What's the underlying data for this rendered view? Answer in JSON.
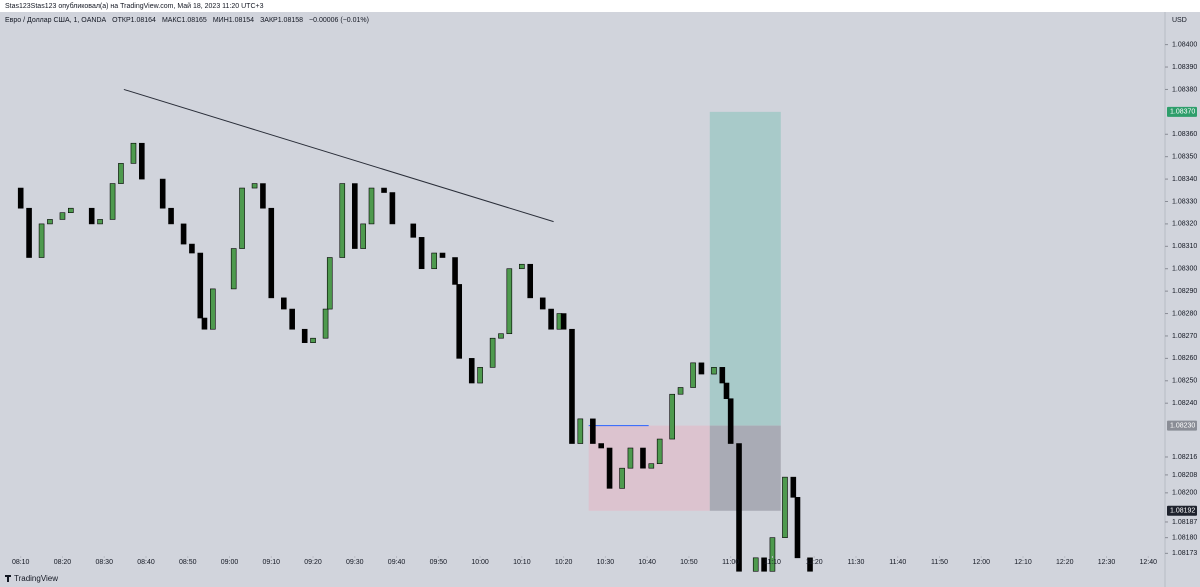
{
  "header": {
    "byline": "Stas123Stas123 опубликовал(а) на TradingView.com, Май 18, 2023 11:20 UTC+3"
  },
  "footer": {
    "brand": "TradingView"
  },
  "chart_data": {
    "type": "candlestick",
    "title": "Евро / Доллар США, 1, OANDA",
    "legend": [
      {
        "label": "ОТКР",
        "value": 1.08164
      },
      {
        "label": "МАКС",
        "value": 1.08165
      },
      {
        "label": "МИН",
        "value": 1.08154
      },
      {
        "label": "ЗАКР",
        "value": 1.08158
      }
    ],
    "change": "−0.00006 (−0.01%)",
    "currency": "USD",
    "up_color": "#4e9a4e",
    "down_color": "#000000",
    "x": [
      490,
      492,
      495,
      497,
      500,
      502,
      507,
      509,
      512,
      514,
      517,
      519,
      524,
      526,
      529,
      531,
      533,
      534,
      536,
      541,
      543,
      546,
      548,
      550,
      553,
      555,
      558,
      560,
      563,
      564,
      567,
      570,
      572,
      574,
      577,
      579,
      584,
      586,
      589,
      591,
      594,
      595,
      598,
      600,
      603,
      605,
      607,
      610,
      612,
      615,
      617,
      619,
      620,
      622,
      624,
      627,
      629,
      631,
      634,
      636,
      639,
      641,
      643,
      646,
      648,
      651,
      653,
      656,
      658,
      659,
      660,
      662,
      666,
      668,
      670,
      673,
      675,
      676,
      679
    ],
    "open": [
      1.08336,
      1.08327,
      1.08305,
      1.0832,
      1.08322,
      1.08325,
      1.08327,
      1.0832,
      1.08322,
      1.08338,
      1.08347,
      1.08356,
      1.0834,
      1.08327,
      1.0832,
      1.08311,
      1.08307,
      1.08278,
      1.08273,
      1.08291,
      1.08309,
      1.08336,
      1.08338,
      1.08327,
      1.08287,
      1.08282,
      1.08273,
      1.08267,
      1.08269,
      1.08282,
      1.08305,
      1.08338,
      1.08309,
      1.0832,
      1.08336,
      1.08334,
      1.0832,
      1.08314,
      1.083,
      1.08307,
      1.08305,
      1.08293,
      1.0826,
      1.08249,
      1.08256,
      1.08269,
      1.08271,
      1.083,
      1.08302,
      1.08287,
      1.08282,
      1.08273,
      1.0828,
      1.08273,
      1.08222,
      1.08233,
      1.08222,
      1.0822,
      1.08202,
      1.08211,
      1.0822,
      1.08211,
      1.08213,
      1.08224,
      1.08244,
      1.08247,
      1.08258,
      1.08253,
      1.08256,
      1.08249,
      1.08242,
      1.08222,
      1.08165,
      1.08171,
      1.08165,
      1.0818,
      1.08207,
      1.08198,
      1.08171
    ],
    "close": [
      1.08327,
      1.08305,
      1.0832,
      1.08322,
      1.08325,
      1.08327,
      1.0832,
      1.08322,
      1.08338,
      1.08347,
      1.08356,
      1.0834,
      1.08327,
      1.0832,
      1.08311,
      1.08307,
      1.08278,
      1.08273,
      1.08291,
      1.08309,
      1.08336,
      1.08338,
      1.08327,
      1.08287,
      1.08282,
      1.08273,
      1.08267,
      1.08269,
      1.08282,
      1.08305,
      1.08338,
      1.08309,
      1.0832,
      1.08336,
      1.08334,
      1.0832,
      1.08314,
      1.083,
      1.08307,
      1.08305,
      1.08293,
      1.0826,
      1.08249,
      1.08256,
      1.08269,
      1.08271,
      1.083,
      1.08302,
      1.08287,
      1.08282,
      1.08273,
      1.0828,
      1.08273,
      1.08222,
      1.08233,
      1.08222,
      1.0822,
      1.08202,
      1.08211,
      1.0822,
      1.08211,
      1.08213,
      1.08224,
      1.08244,
      1.08247,
      1.08258,
      1.08253,
      1.08256,
      1.08249,
      1.08242,
      1.08222,
      1.08165,
      1.08171,
      1.08165,
      1.0818,
      1.08207,
      1.08198,
      1.08171,
      1.08165
    ],
    "xlim": [
      486,
      764
    ],
    "ylim": [
      1.08162,
      1.08415
    ],
    "xticks": [
      {
        "value": 490,
        "label": "08:10"
      },
      {
        "value": 500,
        "label": "08:20"
      },
      {
        "value": 510,
        "label": "08:30"
      },
      {
        "value": 520,
        "label": "08:40"
      },
      {
        "value": 530,
        "label": "08:50"
      },
      {
        "value": 540,
        "label": "09:00"
      },
      {
        "value": 550,
        "label": "09:10"
      },
      {
        "value": 560,
        "label": "09:20"
      },
      {
        "value": 570,
        "label": "09:30"
      },
      {
        "value": 580,
        "label": "09:40"
      },
      {
        "value": 590,
        "label": "09:50"
      },
      {
        "value": 600,
        "label": "10:00"
      },
      {
        "value": 610,
        "label": "10:10"
      },
      {
        "value": 620,
        "label": "10:20"
      },
      {
        "value": 630,
        "label": "10:30"
      },
      {
        "value": 640,
        "label": "10:40"
      },
      {
        "value": 650,
        "label": "10:50"
      },
      {
        "value": 660,
        "label": "11:00"
      },
      {
        "value": 670,
        "label": "11:10"
      },
      {
        "value": 680,
        "label": "11:20"
      },
      {
        "value": 690,
        "label": "11:30"
      },
      {
        "value": 700,
        "label": "11:40"
      },
      {
        "value": 710,
        "label": "11:50"
      },
      {
        "value": 720,
        "label": "12:00"
      },
      {
        "value": 730,
        "label": "12:10"
      },
      {
        "value": 740,
        "label": "12:20"
      },
      {
        "value": 750,
        "label": "12:30"
      },
      {
        "value": 760,
        "label": "12:40"
      }
    ],
    "yticks": [
      {
        "value": 1.084,
        "label": "1.08400"
      },
      {
        "value": 1.0839,
        "label": "1.08390"
      },
      {
        "value": 1.0838,
        "label": "1.08380"
      },
      {
        "value": 1.0836,
        "label": "1.08360"
      },
      {
        "value": 1.0835,
        "label": "1.08350"
      },
      {
        "value": 1.0834,
        "label": "1.08340"
      },
      {
        "value": 1.0833,
        "label": "1.08330"
      },
      {
        "value": 1.0832,
        "label": "1.08320"
      },
      {
        "value": 1.0831,
        "label": "1.08310"
      },
      {
        "value": 1.083,
        "label": "1.08300"
      },
      {
        "value": 1.0829,
        "label": "1.08290"
      },
      {
        "value": 1.0828,
        "label": "1.08280"
      },
      {
        "value": 1.0827,
        "label": "1.08270"
      },
      {
        "value": 1.0826,
        "label": "1.08260"
      },
      {
        "value": 1.0825,
        "label": "1.08250"
      },
      {
        "value": 1.0824,
        "label": "1.08240"
      },
      1.08216,
      1.08208,
      {
        "value": 1.082,
        "label": "1.08200"
      },
      1.08187,
      {
        "value": 1.0818,
        "label": "1.08180"
      },
      1.08173
    ],
    "price_labels": [
      {
        "value": 1.0837,
        "label": "1.08370",
        "color": "#2e9e6b"
      },
      {
        "value": 1.0823,
        "label": "1.08230",
        "color": "#8a8d96"
      },
      {
        "value": 1.08192,
        "label": "1.08192",
        "color": "#1e222d"
      }
    ],
    "position": {
      "x_start": 655,
      "x_end": 672,
      "entry": 1.0823,
      "target": 1.0837,
      "stop": 1.08192
    },
    "zone": {
      "x_start": 626,
      "x_end": 655,
      "top": 1.0823,
      "bottom": 1.08192
    },
    "trendline": {
      "x": [
        514.7,
        617.6
      ],
      "y": [
        1.0838,
        1.08321
      ]
    }
  }
}
